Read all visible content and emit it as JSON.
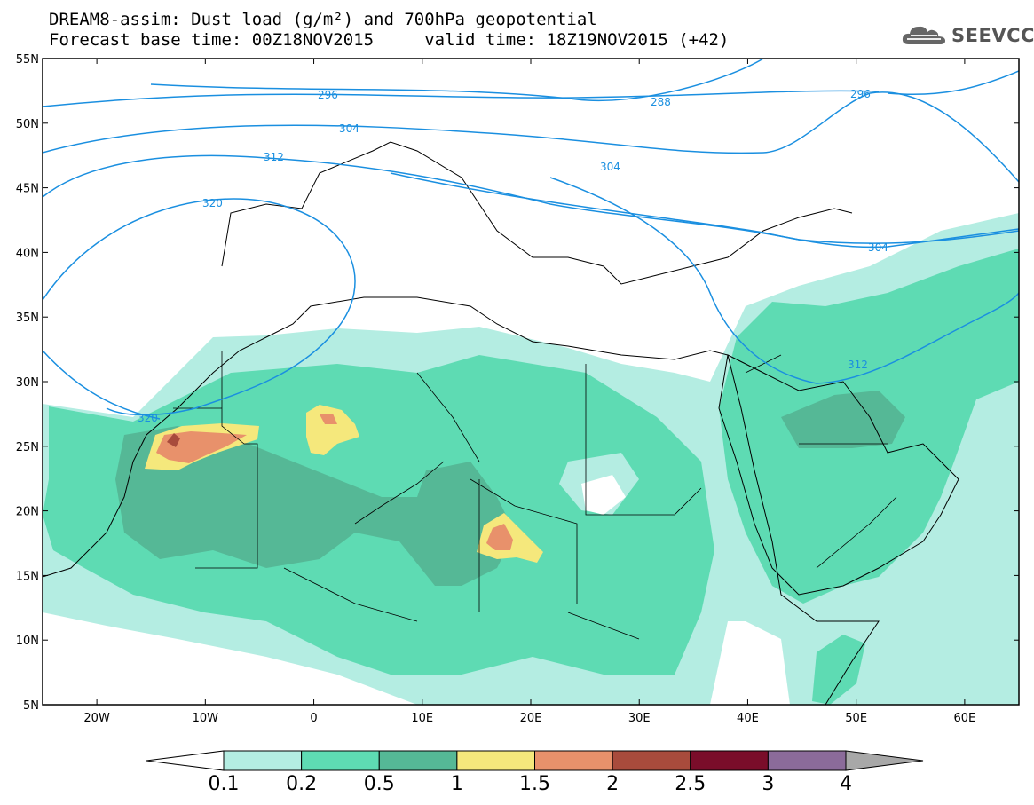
{
  "header": {
    "title_line1": "DREAM8-assim: Dust load (g/m²) and 700hPa geopotential",
    "title_line2": "Forecast base time: 00Z18NOV2015     valid time: 18Z19NOV2015 (+42)",
    "logo_text": "SEEVCCC"
  },
  "map": {
    "lon_range": [
      -25,
      65
    ],
    "lat_range": [
      5,
      55
    ],
    "lat_labels": [
      "55N",
      "50N",
      "45N",
      "40N",
      "35N",
      "30N",
      "25N",
      "20N",
      "15N",
      "10N",
      "5N"
    ],
    "lon_labels": [
      "20W",
      "10W",
      "0",
      "10E",
      "20E",
      "30E",
      "40E",
      "50E",
      "60E"
    ],
    "geopotential_labels": [
      "296",
      "288",
      "296",
      "304",
      "312",
      "304",
      "320",
      "304",
      "312",
      "320"
    ],
    "contour_color": "#1a8fe0"
  },
  "colorbar": {
    "labels": [
      "0.1",
      "0.2",
      "0.5",
      "1",
      "1.5",
      "2",
      "2.5",
      "3",
      "4"
    ],
    "colors": [
      "#ffffff",
      "#b4ede2",
      "#5edbb3",
      "#55b896",
      "#f5e87c",
      "#e8916b",
      "#a84b3c",
      "#7a0d2a",
      "#8b6b9a",
      "#a8a8a8"
    ]
  }
}
